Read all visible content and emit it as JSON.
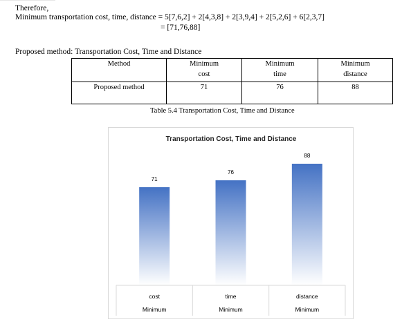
{
  "intro": {
    "therefore": "Therefore,",
    "formula_line": "Minimum transportation cost, time, distance = 5[7,6,2] + 2[4,3,8] + 2[3,9,4] + 2[5,2,6] + 6[2,3,7]",
    "result_line": "= [71,76,88]"
  },
  "section_heading": "Proposed method: Transportation Cost, Time and Distance",
  "table": {
    "headers": [
      {
        "line1": "Method",
        "line2": ""
      },
      {
        "line1": "Minimum",
        "line2": "cost"
      },
      {
        "line1": "Minimum",
        "line2": "time"
      },
      {
        "line1": "Minimum",
        "line2": "distance"
      }
    ],
    "rows": [
      [
        "Proposed method",
        "71",
        "76",
        "88"
      ]
    ]
  },
  "caption": "Table 5.4 Transportation Cost, Time and Distance",
  "chart_data": {
    "type": "bar",
    "title": "Transportation Cost, Time and Distance",
    "categories": [
      {
        "line1": "cost",
        "line2": "Minimum"
      },
      {
        "line1": "time",
        "line2": "Minimum"
      },
      {
        "line1": "distance",
        "line2": "Minimum"
      }
    ],
    "values": [
      71,
      76,
      88
    ],
    "ylim": [
      0,
      100
    ],
    "data_labels": true,
    "grid": false,
    "legend": "none",
    "bar_color_top": "#4472c4",
    "bar_color_bottom": "#ffffff"
  }
}
